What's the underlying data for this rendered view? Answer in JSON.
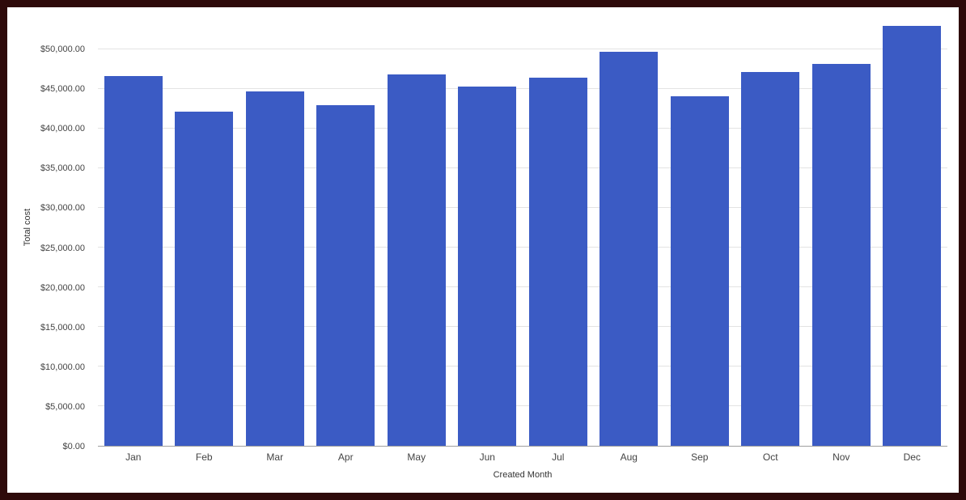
{
  "colors": {
    "bar": "#3b5bc4",
    "frame": "#2e0a0a",
    "gridline": "#e3e3e3",
    "baseline": "#9e9e9e"
  },
  "chart_data": {
    "type": "bar",
    "title": "",
    "xlabel": "Created Month",
    "ylabel": "Total cost",
    "categories": [
      "Jan",
      "Feb",
      "Mar",
      "Apr",
      "May",
      "Jun",
      "Jul",
      "Aug",
      "Sep",
      "Oct",
      "Nov",
      "Dec"
    ],
    "values": [
      46600,
      42100,
      44700,
      43000,
      46800,
      45300,
      46400,
      49700,
      44100,
      47100,
      48200,
      53000
    ],
    "ylim": [
      0,
      55300
    ],
    "yticks": [
      {
        "value": 0,
        "label": "$0.00"
      },
      {
        "value": 5000,
        "label": "$5,000.00"
      },
      {
        "value": 10000,
        "label": "$10,000.00"
      },
      {
        "value": 15000,
        "label": "$15,000.00"
      },
      {
        "value": 20000,
        "label": "$20,000.00"
      },
      {
        "value": 25000,
        "label": "$25,000.00"
      },
      {
        "value": 30000,
        "label": "$30,000.00"
      },
      {
        "value": 35000,
        "label": "$35,000.00"
      },
      {
        "value": 40000,
        "label": "$40,000.00"
      },
      {
        "value": 45000,
        "label": "$45,000.00"
      },
      {
        "value": 50000,
        "label": "$50,000.00"
      }
    ],
    "grid": "horizontal",
    "legend": "none"
  }
}
